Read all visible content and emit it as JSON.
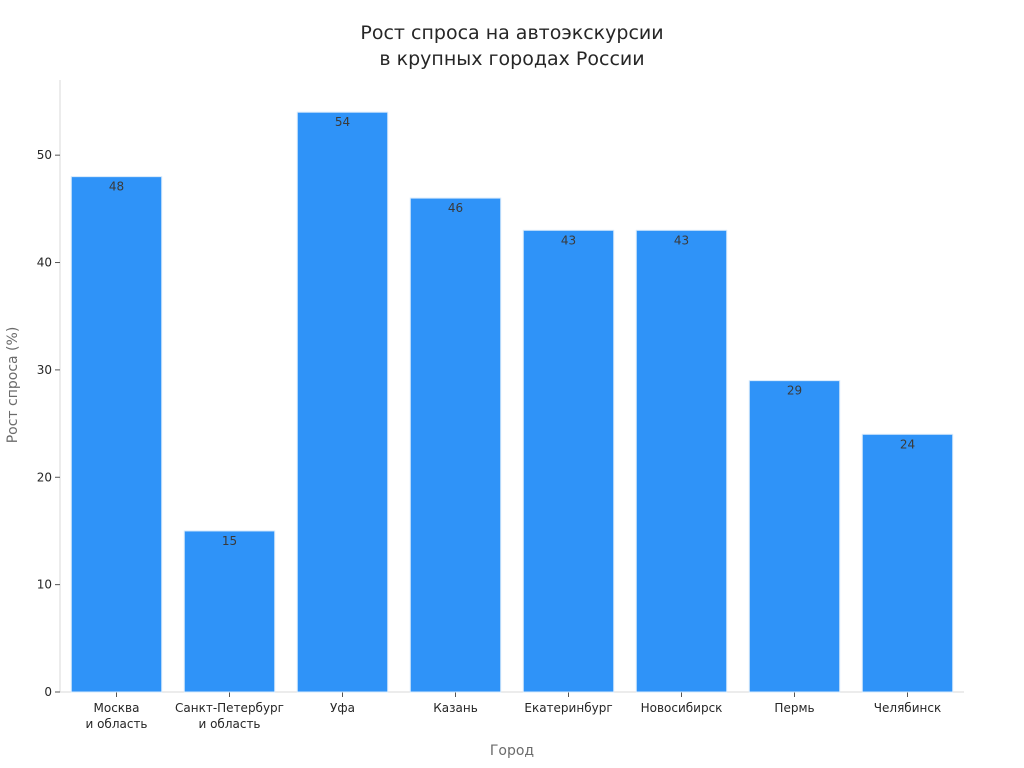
{
  "chart_data": {
    "type": "bar",
    "title_lines": [
      "Рост спроса на автоэкскурсии",
      "в крупных городах России"
    ],
    "xlabel": "Город",
    "ylabel": "Рост спроса (%)",
    "categories": [
      [
        "Москва",
        "и область"
      ],
      [
        "Санкт-Петербург",
        "и область"
      ],
      [
        "Уфа"
      ],
      [
        "Казань"
      ],
      [
        "Екатеринбург"
      ],
      [
        "Новосибирск"
      ],
      [
        "Пермь"
      ],
      [
        "Челябинск"
      ]
    ],
    "values": [
      48,
      15,
      54,
      46,
      43,
      43,
      29,
      24
    ],
    "ylim": [
      0,
      57
    ],
    "yticks": [
      0,
      10,
      20,
      30,
      40,
      50
    ],
    "grid": false,
    "bar_color": "#2f93f8",
    "bar_edge_color": "#d6e9fb",
    "data_labels": true
  }
}
